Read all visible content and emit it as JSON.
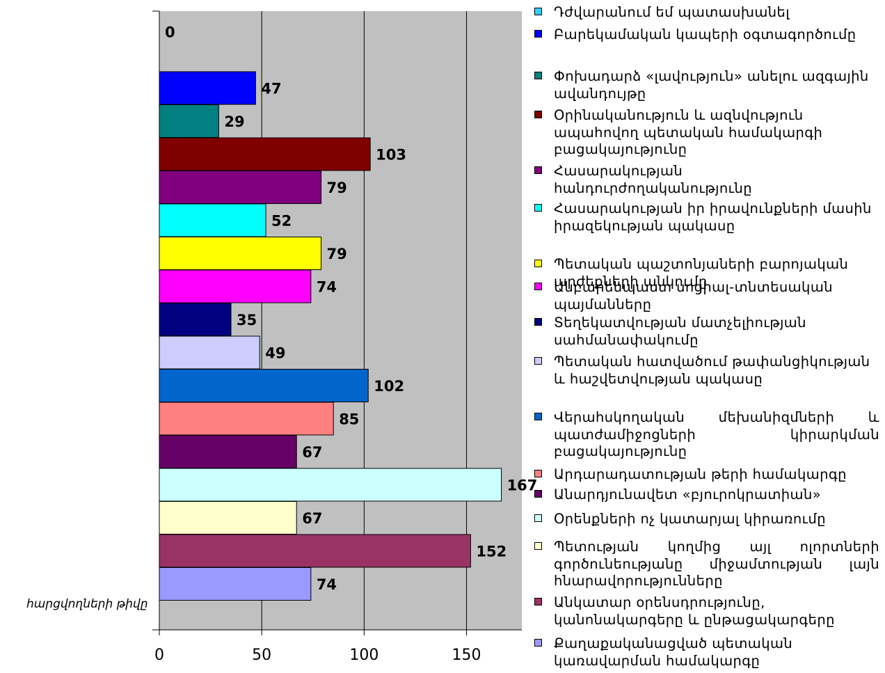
{
  "chart_data": {
    "type": "bar",
    "orientation": "horizontal",
    "ylabel": "հարցվողների թիվը",
    "xlim": [
      0,
      177
    ],
    "xticks": [
      0,
      50,
      100,
      150
    ],
    "grid": true,
    "plot_background": "#c0c0c0",
    "legend_position": "right",
    "series": [
      {
        "name": "Դժվարանում եմ պատասխանել",
        "value": 0,
        "color": "#33ccff"
      },
      {
        "name": "Բարեկամական կապերի օգտագործումը",
        "value": 47,
        "color": "#0000ff"
      },
      {
        "name": "Փոխադարձ «լավություն» անելու ազգային ավանդույթը",
        "value": 29,
        "color": "#008080"
      },
      {
        "name": "Օրինականություն և ազնվություն ապահովող պետական համակարգի բացակայությունը",
        "value": 103,
        "color": "#800000"
      },
      {
        "name": "Հասարակության հանդուրժողականությունը",
        "value": 79,
        "color": "#800080"
      },
      {
        "name": "Հասարակության իր իրավունքների մասին իրազեկության պակասը",
        "value": 52,
        "color": "#00ffff"
      },
      {
        "name": "Պետական պաշտոնյաների բարոյական արժեքների անկումը",
        "value": 79,
        "color": "#ffff00"
      },
      {
        "name": "Անբարենպաստ սոցիալ-տնտեսական պայմանները",
        "value": 74,
        "color": "#ff00ff"
      },
      {
        "name": "Տեղեկատվության մատչելիության սահմանափակումը",
        "value": 35,
        "color": "#000080"
      },
      {
        "name": "Պետական հատվածում թափանցիկության և հաշվետվության պակասը",
        "value": 49,
        "color": "#ccccff"
      },
      {
        "name": "Վերահսկողական մեխանիզմների և պատժամիջոցների կիրարկման բացակայությունը",
        "value": 102,
        "color": "#0066cc"
      },
      {
        "name": "Արդարադատության թերի համակարգը",
        "value": 85,
        "color": "#ff8080"
      },
      {
        "name": "Անարդյունավետ «բյուրոկրատիան»",
        "value": 67,
        "color": "#660066"
      },
      {
        "name": "Օրենքների ոչ կատարյալ կիրառումը",
        "value": 167,
        "color": "#ccffff"
      },
      {
        "name": "Պետության կողմից այլ ոլորտների գործունեությանը միջամտության լայն հնարավորությունները",
        "value": 67,
        "color": "#ffffcc"
      },
      {
        "name": "Անկատար օրենսդրությունը, կանոնակարգերը և ընթացակարգերը",
        "value": 152,
        "color": "#993366"
      },
      {
        "name": "Քաղաքականացված պետական կառավարման համակարգը",
        "value": 74,
        "color": "#9999ff"
      }
    ]
  }
}
